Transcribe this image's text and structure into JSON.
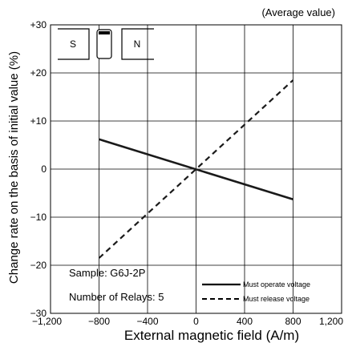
{
  "chart_data": {
    "type": "line",
    "note": "(Average value)",
    "xlabel": "External magnetic field (A/m)",
    "ylabel": "Change rate on the basis of initial value (%)",
    "xlim": [
      -1200,
      1200
    ],
    "ylim": [
      -30,
      30
    ],
    "x_ticks": [
      -1200,
      -800,
      -400,
      0,
      400,
      800,
      1200
    ],
    "x_tick_labels": [
      "−1,200",
      "−800",
      "−400",
      "0",
      "400",
      "800",
      "1,200"
    ],
    "y_ticks": [
      -30,
      -20,
      -10,
      0,
      10,
      20,
      30
    ],
    "y_tick_labels": [
      "−30",
      "−20",
      "−10",
      "0",
      "+10",
      "+20",
      "+30"
    ],
    "grid": true,
    "legend_position": "bottom-right",
    "series": [
      {
        "name": "Must operate voltage",
        "style": "solid",
        "color": "#1a1a1a",
        "x": [
          -800,
          800
        ],
        "y": [
          6.2,
          -6.3
        ]
      },
      {
        "name": "Must release voltage",
        "style": "dashed",
        "color": "#1a1a1a",
        "x": [
          -800,
          800
        ],
        "y": [
          -18.5,
          18.5
        ]
      }
    ],
    "annotations": [
      "Sample: G6J-2P",
      "Number of Relays: 5"
    ],
    "inset_labels": {
      "south": "S",
      "north": "N"
    }
  }
}
